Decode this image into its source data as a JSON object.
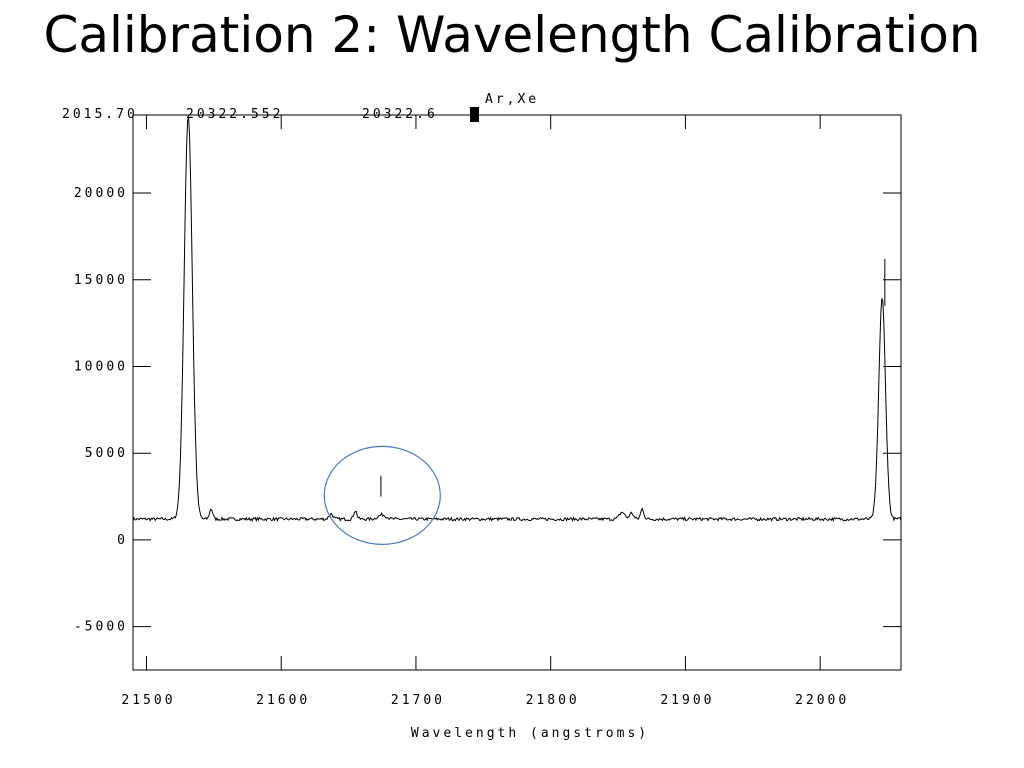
{
  "slide": {
    "title": "Calibration 2: Wavelength Calibration"
  },
  "readout": {
    "intensity": "2015.70",
    "wavelength_fit": "20322.552",
    "wavelength": "20322.6",
    "label": "Ar,Xe"
  },
  "annotation": {
    "shape": "circle",
    "color": "#4a7ab8",
    "center": [
      21675,
      1300
    ],
    "note": "faint line at ~21675 marked with tick"
  },
  "chart_data": {
    "type": "line",
    "title": "",
    "xlabel": "Wavelength (angstroms)",
    "ylabel": "",
    "xlim": [
      21490,
      22060
    ],
    "ylim": [
      -7500,
      24500
    ],
    "xticks": [
      21500,
      21600,
      21700,
      21800,
      21900,
      22000
    ],
    "xtick_labels": [
      "21500",
      "21600",
      "21700",
      "21800",
      "21900",
      "22000"
    ],
    "yticks": [
      -5000,
      0,
      5000,
      10000,
      15000,
      20000
    ],
    "ytick_labels": [
      "-5000",
      "0",
      "5000",
      "10000",
      "15000",
      "20000"
    ],
    "grid": false,
    "line_color": "#000000",
    "baseline": 1200,
    "peaks": [
      {
        "x": 21531,
        "y": 24500,
        "width": 3.0
      },
      {
        "x": 21548,
        "y": 1800,
        "width": 1.2
      },
      {
        "x": 21637,
        "y": 1500,
        "width": 1.5
      },
      {
        "x": 21655,
        "y": 1700,
        "width": 1.2
      },
      {
        "x": 21675,
        "y": 1450,
        "width": 3.0
      },
      {
        "x": 21853,
        "y": 1600,
        "width": 2.0
      },
      {
        "x": 21860,
        "y": 1550,
        "width": 1.5
      },
      {
        "x": 21868,
        "y": 1800,
        "width": 1.2
      },
      {
        "x": 22046,
        "y": 14000,
        "width": 2.5
      }
    ],
    "marker_line": {
      "x": 22048,
      "y_top": 16200,
      "y_bottom": 13500
    },
    "annotation_tick": {
      "x": 21674,
      "y_top": 3700,
      "y_bottom": 2500
    }
  }
}
